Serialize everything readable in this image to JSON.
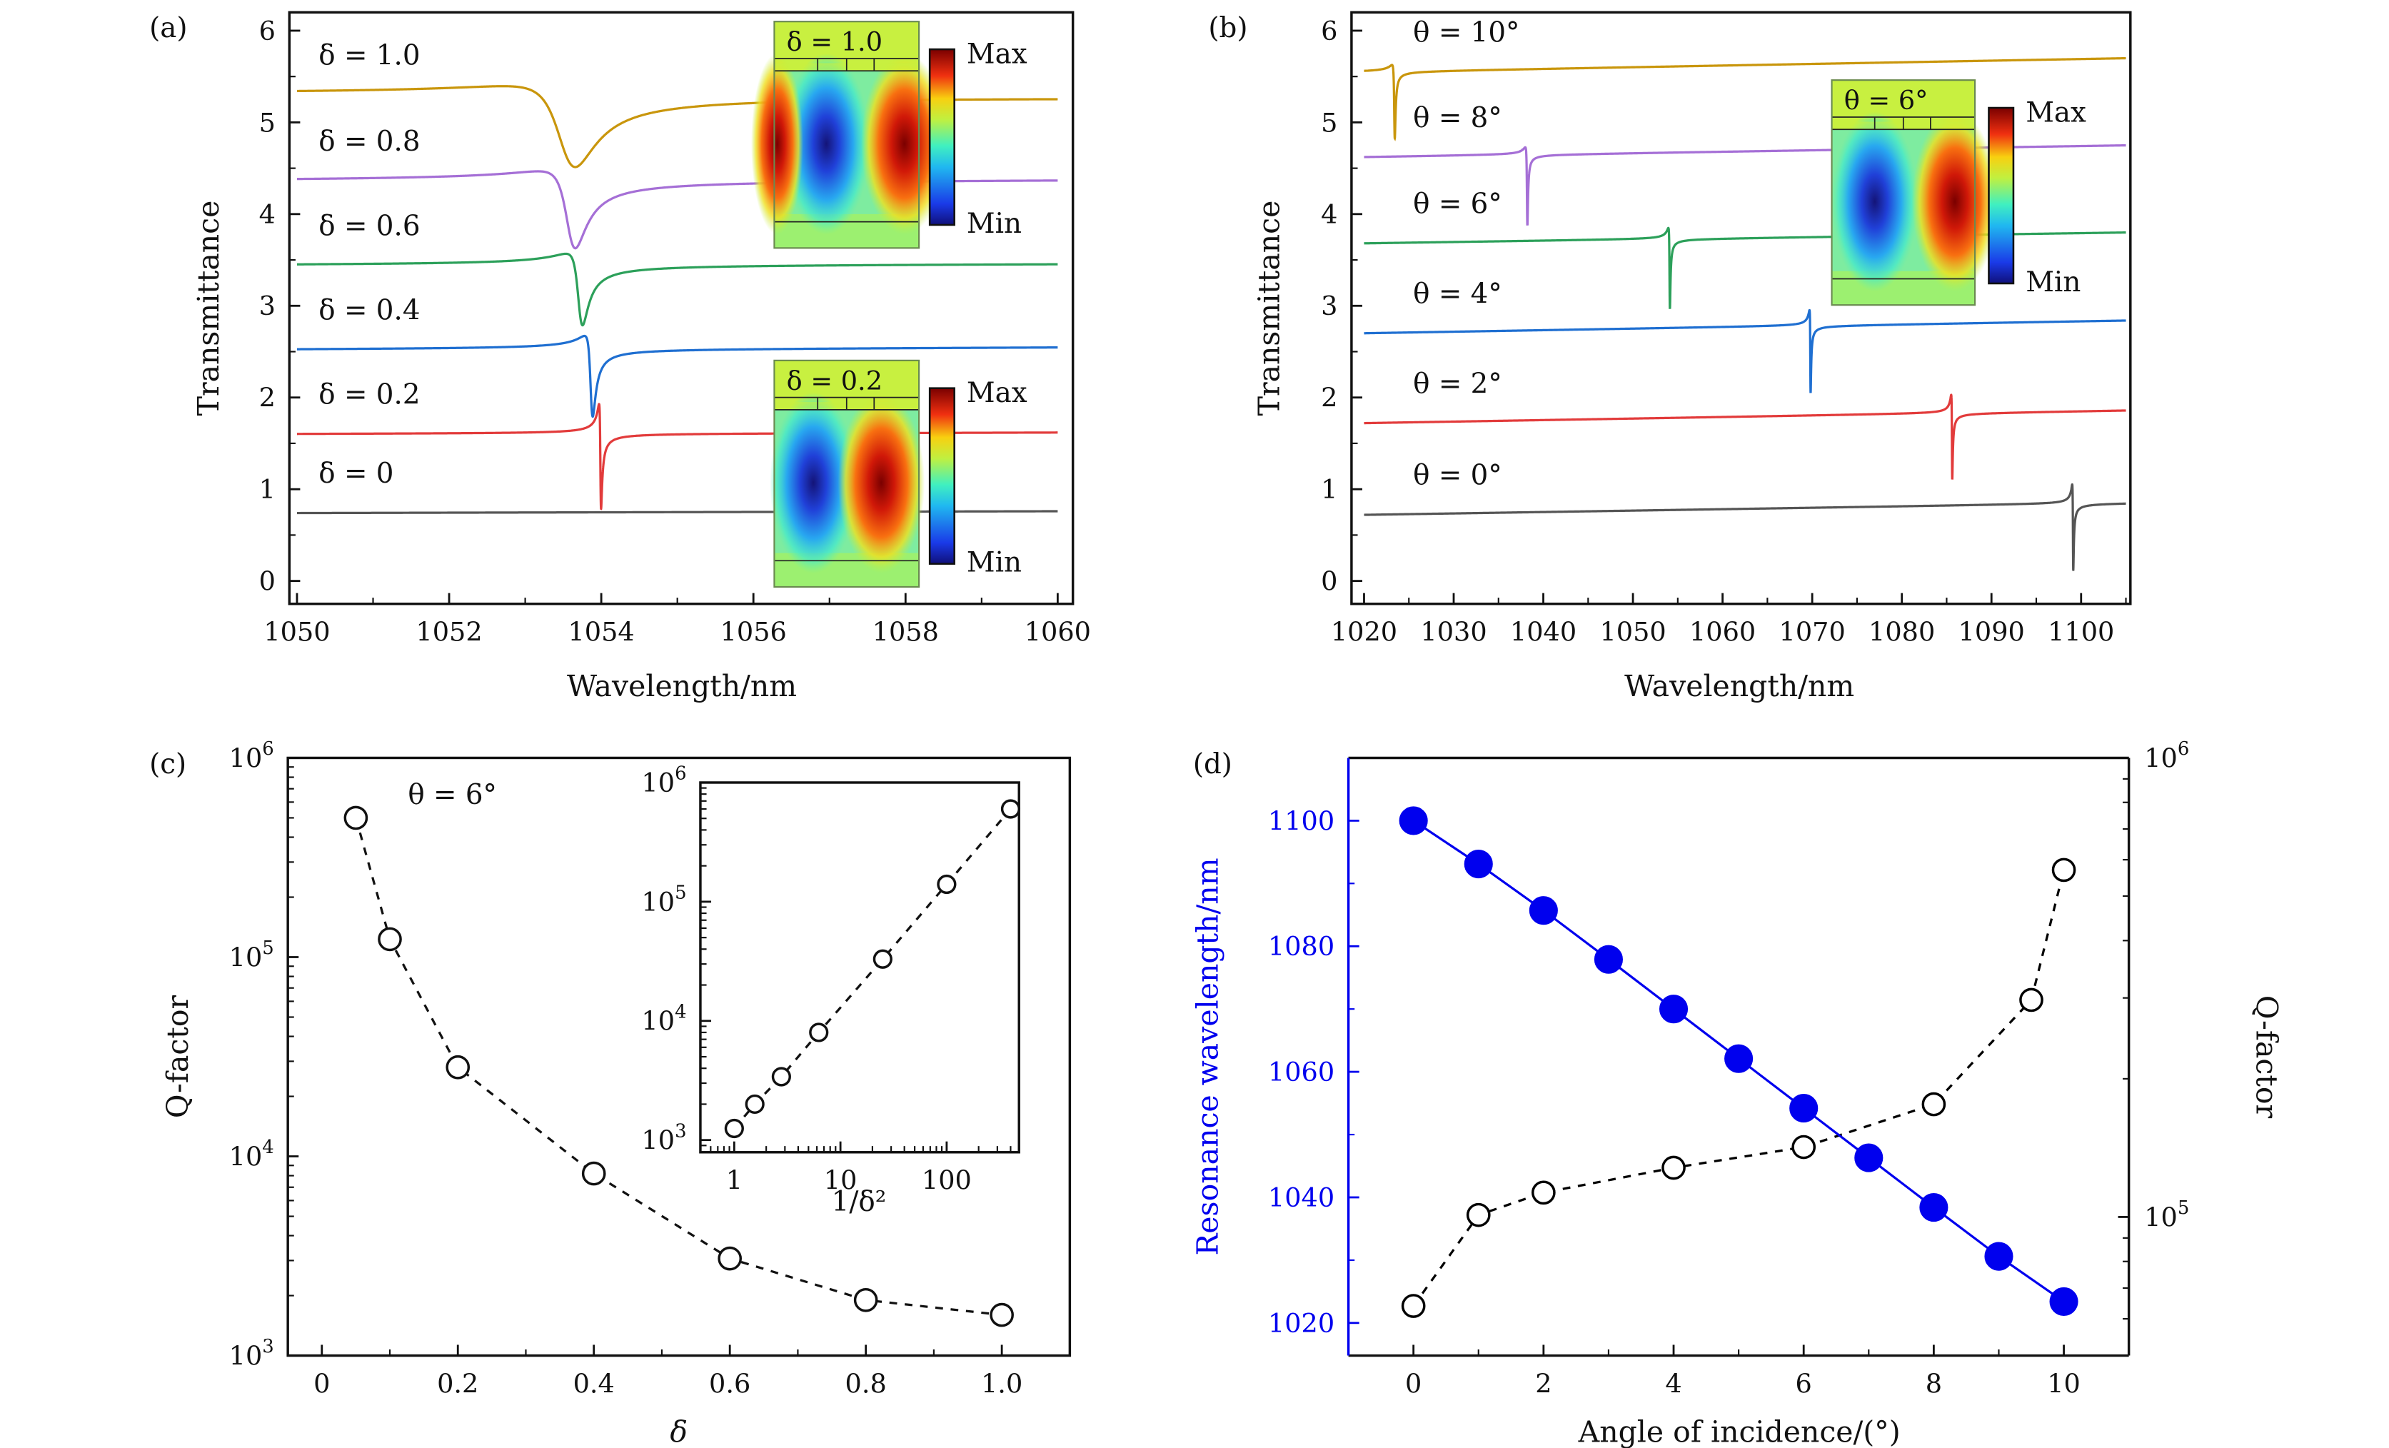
{
  "chart_data": [
    {
      "panel": "(a)",
      "type": "line",
      "xlabel": "Wavelength/nm",
      "ylabel": "Transmittance",
      "xlim": [
        1049.9,
        1060.2
      ],
      "ylim": [
        -0.25,
        6.2
      ],
      "xticks": [
        1050,
        1052,
        1054,
        1056,
        1058,
        1060
      ],
      "yticks": [
        0,
        1,
        2,
        3,
        4,
        5,
        6
      ],
      "series": [
        {
          "name": "δ = 0",
          "color": "#555555",
          "baseline": [
            0.74,
            0.76
          ],
          "resonance_nm": null,
          "peak": null,
          "dip": null,
          "linewidth_nm": null
        },
        {
          "name": "δ = 0.2",
          "color": "#e23b3b",
          "baseline": [
            1.6,
            1.62
          ],
          "resonance_nm": 1053.99,
          "peak": 1.92,
          "dip": 0.78,
          "linewidth_nm": 0.012
        },
        {
          "name": "δ = 0.4",
          "color": "#1f6fd1",
          "baseline": [
            2.52,
            2.55
          ],
          "resonance_nm": 1053.87,
          "peak": 2.66,
          "dip": 1.78,
          "linewidth_nm": 0.04
        },
        {
          "name": "δ = 0.6",
          "color": "#2ca05a",
          "baseline": [
            3.44,
            3.46
          ],
          "resonance_nm": 1053.72,
          "peak": 3.56,
          "dip": 2.78,
          "linewidth_nm": 0.08
        },
        {
          "name": "δ = 0.8",
          "color": "#a56fd6",
          "baseline": [
            4.36,
            4.38
          ],
          "resonance_nm": 1053.6,
          "peak": 4.46,
          "dip": 3.62,
          "linewidth_nm": 0.16
        },
        {
          "name": "δ = 1.0",
          "color": "#c9960c",
          "baseline": [
            5.3,
            5.28
          ],
          "resonance_nm": 1053.55,
          "peak": 5.4,
          "dip": 4.52,
          "linewidth_nm": 0.3
        }
      ],
      "insets": [
        {
          "label": "δ = 1.0",
          "max_label": "Max",
          "min_label": "Min"
        },
        {
          "label": "δ = 0.2",
          "max_label": "Max",
          "min_label": "Min"
        }
      ]
    },
    {
      "panel": "(b)",
      "type": "line",
      "xlabel": "Wavelength/nm",
      "ylabel": "Transmittance",
      "xlim": [
        1018.6,
        1105.5
      ],
      "ylim": [
        -0.25,
        6.2
      ],
      "xticks": [
        1020,
        1030,
        1040,
        1050,
        1060,
        1070,
        1080,
        1090,
        1100
      ],
      "yticks": [
        0,
        1,
        2,
        3,
        4,
        5,
        6
      ],
      "series": [
        {
          "name": "θ = 0°",
          "color": "#555555",
          "baseline": [
            0.72,
            0.85
          ],
          "resonance_nm": 1099.1,
          "peak": 0.93,
          "dip": 0.0,
          "linewidth_nm": 0.05
        },
        {
          "name": "θ = 2°",
          "color": "#e23b3b",
          "baseline": [
            1.72,
            1.86
          ],
          "resonance_nm": 1085.6,
          "peak": 1.92,
          "dip": 1.0,
          "linewidth_nm": 0.05
        },
        {
          "name": "θ = 4°",
          "color": "#1f6fd1",
          "baseline": [
            2.7,
            2.84
          ],
          "resonance_nm": 1069.8,
          "peak": 2.87,
          "dip": 1.97,
          "linewidth_nm": 0.05
        },
        {
          "name": "θ = 6°",
          "color": "#2ca05a",
          "baseline": [
            3.68,
            3.8
          ],
          "resonance_nm": 1054.1,
          "peak": 3.8,
          "dip": 2.92,
          "linewidth_nm": 0.06
        },
        {
          "name": "θ = 8°",
          "color": "#a56fd6",
          "baseline": [
            4.62,
            4.75
          ],
          "resonance_nm": 1038.2,
          "peak": 4.7,
          "dip": 3.85,
          "linewidth_nm": 0.07
        },
        {
          "name": "θ = 10°",
          "color": "#c9960c",
          "baseline": [
            5.55,
            5.7
          ],
          "resonance_nm": 1023.4,
          "peak": 5.62,
          "dip": 4.82,
          "linewidth_nm": 0.09
        }
      ],
      "insets": [
        {
          "label": "θ = 6°",
          "max_label": "Max",
          "min_label": "Min"
        }
      ]
    },
    {
      "panel": "(c)",
      "type": "scatter",
      "xlabel": "δ",
      "ylabel": "Q-factor",
      "annotation": "θ = 6°",
      "yscale": "log",
      "xlim": [
        -0.05,
        1.1
      ],
      "ylim": [
        1000,
        1000000
      ],
      "xticks": [
        0,
        0.2,
        0.4,
        0.6,
        0.8,
        1.0
      ],
      "xtick_labels": [
        "0",
        "0.2",
        "0.4",
        "0.6",
        "0.8",
        "1.0"
      ],
      "yticks": [
        1000,
        10000,
        100000,
        1000000
      ],
      "x": [
        0.05,
        0.1,
        0.2,
        0.4,
        0.6,
        0.8,
        1.0
      ],
      "y": [
        500000,
        123000,
        28000,
        8200,
        3070,
        1900,
        1600
      ],
      "marker": "open-circle",
      "line": "dashed",
      "inset": {
        "xlabel": "1/δ²",
        "xscale": "log",
        "yscale": "log",
        "xlim": [
          0.48,
          480
        ],
        "ylim": [
          790,
          1000000
        ],
        "xticks": [
          1,
          10,
          100
        ],
        "yticks": [
          1000,
          10000,
          100000,
          1000000
        ],
        "x": [
          1,
          1.5625,
          2.778,
          6.25,
          25,
          100,
          400
        ],
        "y": [
          1250,
          2000,
          3400,
          8000,
          33000,
          140000,
          600000
        ]
      }
    },
    {
      "panel": "(d)",
      "type": "scatter",
      "xlabel": "Angle of incidence/(°)",
      "ylabel": "Resonance wavelength/nm",
      "ylabel_right": "Q-factor",
      "xlim": [
        -1,
        11
      ],
      "ylim": [
        1014.8,
        1110
      ],
      "ylim_right": [
        49900,
        1000000
      ],
      "yscale_right": "log",
      "xticks": [
        0,
        2,
        4,
        6,
        8,
        10
      ],
      "yticks": [
        1020,
        1040,
        1060,
        1080,
        1100
      ],
      "yticks_right": [
        100000,
        1000000
      ],
      "left_axis_color": "#0000ee",
      "series": [
        {
          "axis": "left",
          "color": "#0000ee",
          "marker": "filled-circle",
          "line": "solid",
          "x": [
            0,
            1,
            2,
            3,
            4,
            5,
            6,
            7,
            8,
            9,
            10
          ],
          "y": [
            1100,
            1093.1,
            1085.7,
            1077.9,
            1070,
            1062.1,
            1054.2,
            1046.3,
            1038.4,
            1030.6,
            1023.4
          ]
        },
        {
          "axis": "right",
          "color": "#000000",
          "marker": "open-circle",
          "line": "dashed",
          "x": [
            0,
            1,
            2,
            4,
            6,
            8,
            9.5,
            10
          ],
          "y": [
            64000,
            101000,
            113000,
            128000,
            142000,
            176000,
            297000,
            570000
          ]
        }
      ]
    }
  ]
}
